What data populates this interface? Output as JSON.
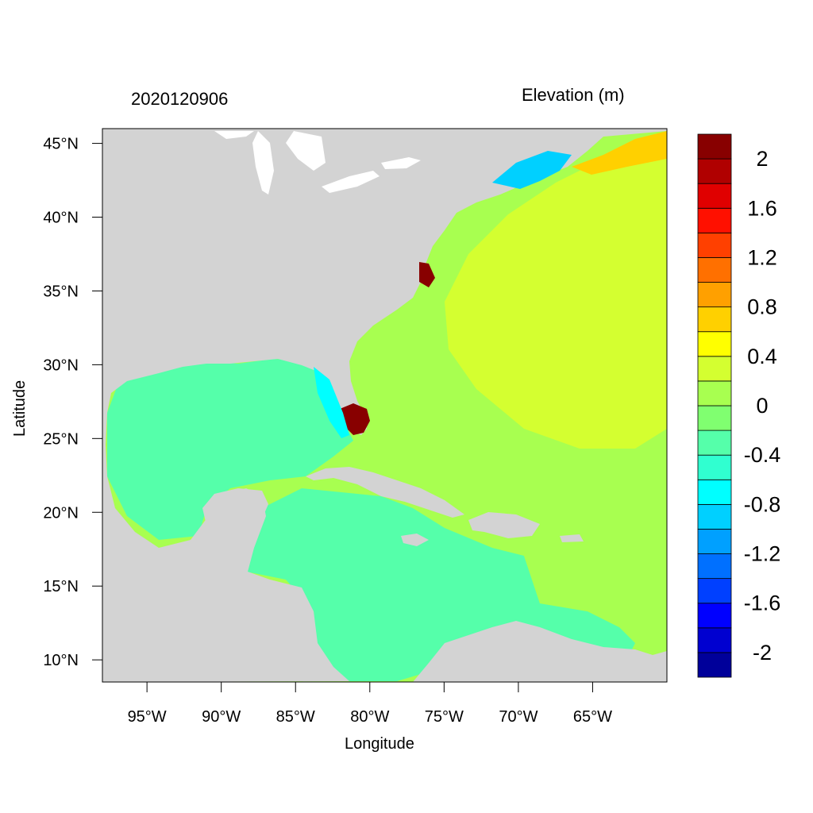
{
  "map": {
    "date": "2020120906",
    "variable": "Elevation (m)",
    "xlabel": "Longitude",
    "ylabel": "Latitude",
    "lat_ticks": [
      {
        "lat": 45,
        "label": "45°N"
      },
      {
        "lat": 40,
        "label": "40°N"
      },
      {
        "lat": 35,
        "label": "35°N"
      },
      {
        "lat": 30,
        "label": "30°N"
      },
      {
        "lat": 25,
        "label": "25°N"
      },
      {
        "lat": 20,
        "label": "20°N"
      },
      {
        "lat": 15,
        "label": "15°N"
      },
      {
        "lat": 10,
        "label": "10°N"
      }
    ],
    "lon_ticks": [
      {
        "lon": -95,
        "label": "95°W"
      },
      {
        "lon": -90,
        "label": "90°W"
      },
      {
        "lon": -85,
        "label": "85°W"
      },
      {
        "lon": -80,
        "label": "80°W"
      },
      {
        "lon": -75,
        "label": "75°W"
      },
      {
        "lon": -70,
        "label": "70°W"
      },
      {
        "lon": -65,
        "label": "65°W"
      }
    ],
    "extent": {
      "lon_min": -98,
      "lon_max": -60,
      "lat_min": 8.5,
      "lat_max": 46
    },
    "colorbar": {
      "colors": [
        "#00009a",
        "#0000d0",
        "#0000ff",
        "#0040ff",
        "#0070ff",
        "#00a0ff",
        "#00d0ff",
        "#00ffff",
        "#30ffd0",
        "#55ffaa",
        "#80ff70",
        "#a8ff50",
        "#d4ff30",
        "#ffff00",
        "#ffd000",
        "#ffa000",
        "#ff7000",
        "#ff4000",
        "#ff1000",
        "#e00000",
        "#b00000",
        "#880000"
      ],
      "tick_labels": [
        "-2",
        "-1.6",
        "-1.2",
        "-0.8",
        "-0.4",
        "0",
        "0.4",
        "0.8",
        "1.2",
        "1.6",
        "2"
      ]
    },
    "colors": {
      "land": "#d3d3d3",
      "gulf_caribbean": "#55ffaa",
      "atlantic": "#a8ff50",
      "high_center": "#d4ff30",
      "surge_high": "#880000",
      "negative": "#00d0ff"
    }
  }
}
